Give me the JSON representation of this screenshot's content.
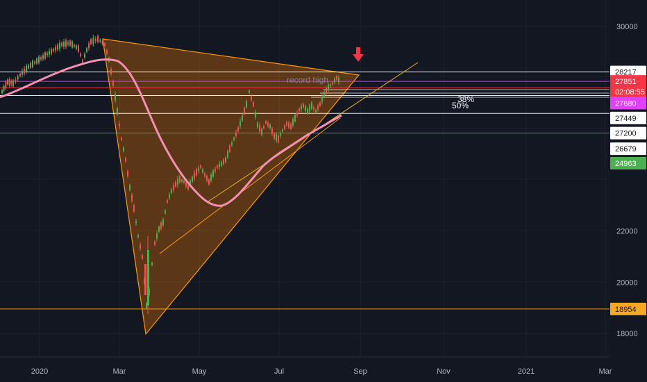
{
  "chart_data": {
    "type": "candlestick",
    "y_axis_ticks": [
      18000,
      20000,
      22000,
      30000
    ],
    "x_axis_ticks": [
      "2020",
      "Mar",
      "May",
      "Jul",
      "Sep",
      "Nov",
      "2021",
      "Mar"
    ],
    "ylim": [
      17600,
      30600
    ],
    "price_labels": [
      {
        "value": "28217",
        "level": 28217,
        "bg": "#ffffff",
        "fg": "#131722"
      },
      {
        "value": "27851",
        "level": 27851,
        "bg": "#f23645",
        "fg": "#ffffff"
      },
      {
        "value": "02:08:55",
        "level": 27450,
        "bg": "#f23645",
        "fg": "#ffffff"
      },
      {
        "value": "27680",
        "level": 27000,
        "bg": "#e040fb",
        "fg": "#ffffff"
      },
      {
        "value": "27449",
        "level": 26420,
        "bg": "#ffffff",
        "fg": "#131722"
      },
      {
        "value": "27200",
        "level": 25830,
        "bg": "#ffffff",
        "fg": "#131722"
      },
      {
        "value": "26679",
        "level": 25220,
        "bg": "#ffffff",
        "fg": "#131722"
      },
      {
        "value": "24963",
        "level": 24650,
        "bg": "#4caf50",
        "fg": "#ffffff"
      },
      {
        "value": "18954",
        "level": 18954,
        "bg": "#f9a825",
        "fg": "#131722"
      }
    ],
    "horizontal_lines": [
      {
        "level": 28217,
        "color": "#ffffff"
      },
      {
        "level": 27851,
        "color": "#e040fb"
      },
      {
        "level": 27600,
        "color": "#f23645"
      },
      {
        "level": 27300,
        "color": "#ffffff"
      },
      {
        "level": 26600,
        "color": "#ffffff"
      },
      {
        "level": 25830,
        "color": "#4caf50"
      },
      {
        "level": 18954,
        "color": "#f9a825"
      }
    ],
    "annotations": {
      "record_high": "record high",
      "fib_38": "38%",
      "fib_50": "50%"
    },
    "colors": {
      "up": "#26a69a",
      "down": "#ef5350",
      "candle_up": "#4caf50",
      "ma": "#f48fb1",
      "triangle_fill": "#f57c00",
      "triangle_stroke": "#ff9800",
      "arrow": "#f23645"
    }
  }
}
